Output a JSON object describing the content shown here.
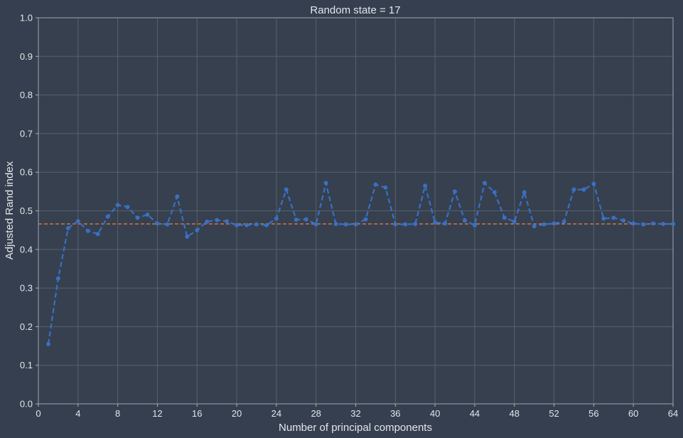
{
  "chart_data": {
    "type": "line",
    "title": "Random state = 17",
    "xlabel": "Number of principal components",
    "ylabel": "Adjusted Rand index",
    "xlim": [
      0,
      64
    ],
    "ylim": [
      0.0,
      1.0
    ],
    "xticks": [
      0,
      4,
      8,
      12,
      16,
      20,
      24,
      28,
      32,
      36,
      40,
      44,
      48,
      52,
      56,
      60,
      64
    ],
    "yticks": [
      0.0,
      0.1,
      0.2,
      0.3,
      0.4,
      0.5,
      0.6,
      0.7,
      0.8,
      0.9,
      1.0
    ],
    "ytick_labels": [
      "0.0",
      "0.1",
      "0.2",
      "0.3",
      "0.4",
      "0.5",
      "0.6",
      "0.7",
      "0.8",
      "0.9",
      "1.0"
    ],
    "grid": true,
    "series": [
      {
        "color": "#3a6fc4",
        "line_style": "dashed",
        "marker": "circle",
        "x": [
          1,
          2,
          3,
          4,
          5,
          6,
          7,
          8,
          9,
          10,
          11,
          12,
          13,
          14,
          15,
          16,
          17,
          18,
          19,
          20,
          21,
          22,
          23,
          24,
          25,
          26,
          27,
          28,
          29,
          30,
          31,
          32,
          33,
          34,
          35,
          36,
          37,
          38,
          39,
          40,
          41,
          42,
          43,
          44,
          45,
          46,
          47,
          48,
          49,
          50,
          51,
          52,
          53,
          54,
          55,
          56,
          57,
          58,
          59,
          60,
          61,
          62,
          63,
          64
        ],
        "y": [
          0.155,
          0.325,
          0.455,
          0.473,
          0.448,
          0.44,
          0.485,
          0.515,
          0.51,
          0.482,
          0.49,
          0.467,
          0.465,
          0.537,
          0.433,
          0.45,
          0.472,
          0.476,
          0.473,
          0.463,
          0.463,
          0.465,
          0.463,
          0.48,
          0.555,
          0.477,
          0.478,
          0.465,
          0.572,
          0.466,
          0.465,
          0.465,
          0.478,
          0.568,
          0.56,
          0.465,
          0.465,
          0.466,
          0.565,
          0.47,
          0.467,
          0.55,
          0.475,
          0.463,
          0.572,
          0.548,
          0.482,
          0.472,
          0.548,
          0.46,
          0.465,
          0.467,
          0.472,
          0.555,
          0.555,
          0.57,
          0.48,
          0.482,
          0.475,
          0.467,
          0.465,
          0.467,
          0.466,
          0.466
        ]
      }
    ],
    "reference_line": {
      "y": 0.466,
      "color": "#e07b3c",
      "line_style": "dashed"
    }
  }
}
